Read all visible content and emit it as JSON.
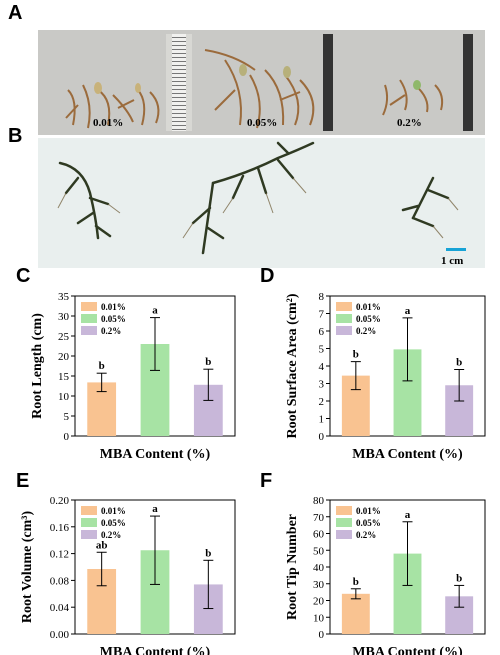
{
  "panel_letters": {
    "A": "A",
    "B": "B",
    "C": "C",
    "D": "D",
    "E": "E",
    "F": "F"
  },
  "photo_a": {
    "labels": [
      "0.01%",
      "0.05%",
      "0.2%"
    ]
  },
  "photo_b": {
    "scale_label": "1 cm"
  },
  "colors": {
    "s001": "#f9c391",
    "s005": "#a7e3a4",
    "s02": "#c8b7d9",
    "root_light": "#9b6b3c",
    "root_dark": "#2f3a22"
  },
  "chart_data": [
    {
      "id": "C",
      "type": "bar",
      "categories": [
        "0.01%",
        "0.05%",
        "0.2%"
      ],
      "values": [
        13.4,
        23.0,
        12.8
      ],
      "errors": [
        2.3,
        6.6,
        3.9
      ],
      "sig_letters": [
        "b",
        "a",
        "b"
      ],
      "xlabel": "MBA Content (%)",
      "ylabel": "Root Length (cm)",
      "ylim": [
        0,
        35
      ],
      "yticks": [
        "0",
        "5",
        "10",
        "15",
        "20",
        "25",
        "30",
        "35"
      ],
      "legend": [
        "0.01%",
        "0.05%",
        "0.2%"
      ],
      "legend_position": "top-left",
      "grid": false
    },
    {
      "id": "D",
      "type": "bar",
      "categories": [
        "0.01%",
        "0.05%",
        "0.2%"
      ],
      "values": [
        3.45,
        4.95,
        2.9
      ],
      "errors": [
        0.8,
        1.8,
        0.9
      ],
      "sig_letters": [
        "b",
        "a",
        "b"
      ],
      "xlabel": "MBA Content (%)",
      "ylabel": "Root Surface Area (cm²)",
      "ylim": [
        0,
        8
      ],
      "yticks": [
        "0",
        "1",
        "2",
        "3",
        "4",
        "5",
        "6",
        "7",
        "8"
      ],
      "legend": [
        "0.01%",
        "0.05%",
        "0.2%"
      ],
      "legend_position": "top-left",
      "grid": false
    },
    {
      "id": "E",
      "type": "bar",
      "categories": [
        "0.01%",
        "0.05%",
        "0.2%"
      ],
      "values": [
        0.097,
        0.125,
        0.074
      ],
      "errors": [
        0.025,
        0.051,
        0.036
      ],
      "sig_letters": [
        "ab",
        "a",
        "b"
      ],
      "xlabel": "MBA Content (%)",
      "ylabel": "Root Volume (cm³)",
      "ylim": [
        0,
        0.2
      ],
      "yticks": [
        "0.00",
        "0.04",
        "0.08",
        "0.12",
        "0.16",
        "0.20"
      ],
      "legend": [
        "0.01%",
        "0.05%",
        "0.2%"
      ],
      "legend_position": "top-left",
      "grid": false
    },
    {
      "id": "F",
      "type": "bar",
      "categories": [
        "0.01%",
        "0.05%",
        "0.2%"
      ],
      "values": [
        24,
        48,
        22.5
      ],
      "errors": [
        3,
        19,
        6.5
      ],
      "sig_letters": [
        "b",
        "a",
        "b"
      ],
      "xlabel": "MBA Content (%)",
      "ylabel": "Root Tip Number",
      "ylim": [
        0,
        80
      ],
      "yticks": [
        "0",
        "10",
        "20",
        "30",
        "40",
        "50",
        "60",
        "70",
        "80"
      ],
      "legend": [
        "0.01%",
        "0.05%",
        "0.2%"
      ],
      "legend_position": "top-left",
      "grid": false
    }
  ]
}
